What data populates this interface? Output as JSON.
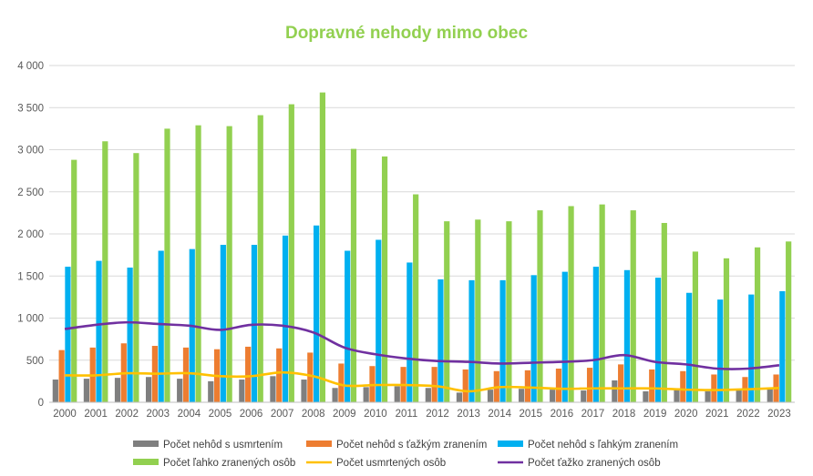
{
  "chart_data": {
    "type": "bar",
    "title": "Dopravné nehody mimo obec",
    "xlabel": "",
    "ylabel": "",
    "ylim": [
      0,
      4000
    ],
    "yticks": [
      0,
      500,
      1000,
      1500,
      2000,
      2500,
      3000,
      3500,
      4000
    ],
    "ytick_labels": [
      "0",
      "500",
      "1 000",
      "1 500",
      "2 000",
      "2 500",
      "3 000",
      "3 500",
      "4 000"
    ],
    "grid": "horizontal",
    "legend_position": "bottom",
    "categories": [
      "2000",
      "2001",
      "2002",
      "2003",
      "2004",
      "2005",
      "2006",
      "2007",
      "2008",
      "2009",
      "2010",
      "2011",
      "2012",
      "2013",
      "2014",
      "2015",
      "2016",
      "2017",
      "2018",
      "2019",
      "2020",
      "2021",
      "2022",
      "2023"
    ],
    "series": [
      {
        "name": "Počet nehôd s usmrtením",
        "kind": "bar",
        "color": "#7f7f7f",
        "values": [
          270,
          280,
          290,
          300,
          280,
          250,
          270,
          310,
          270,
          170,
          180,
          190,
          170,
          115,
          150,
          160,
          150,
          140,
          260,
          130,
          145,
          130,
          145,
          160
        ]
      },
      {
        "name": "Počet nehôd s ťažkým zranením",
        "kind": "bar",
        "color": "#ed7d31",
        "values": [
          620,
          650,
          700,
          670,
          650,
          630,
          660,
          640,
          590,
          460,
          430,
          420,
          420,
          390,
          370,
          380,
          400,
          410,
          450,
          390,
          370,
          330,
          300,
          330
        ]
      },
      {
        "name": "Počet nehôd s ľahkým zranením",
        "kind": "bar",
        "color": "#00b0f0",
        "values": [
          1610,
          1680,
          1600,
          1800,
          1820,
          1870,
          1870,
          1980,
          2100,
          1800,
          1930,
          1660,
          1460,
          1450,
          1450,
          1510,
          1550,
          1610,
          1570,
          1480,
          1300,
          1220,
          1280,
          1320
        ]
      },
      {
        "name": "Počet ľahko zranených osôb",
        "kind": "bar",
        "color": "#92d050",
        "values": [
          2880,
          3100,
          2960,
          3250,
          3290,
          3280,
          3410,
          3540,
          3680,
          3010,
          2920,
          2470,
          2150,
          2170,
          2150,
          2280,
          2330,
          2350,
          2280,
          2130,
          1790,
          1710,
          1840,
          1910
        ]
      },
      {
        "name": "Počet usmrtených osôb",
        "kind": "line",
        "color": "#ffc000",
        "values": [
          320,
          320,
          345,
          340,
          345,
          310,
          310,
          355,
          310,
          200,
          205,
          205,
          190,
          130,
          180,
          175,
          160,
          165,
          165,
          165,
          150,
          145,
          155,
          170
        ]
      },
      {
        "name": "Počet ťažko zranených osôb",
        "kind": "line",
        "color": "#7030a0",
        "values": [
          870,
          920,
          950,
          930,
          910,
          860,
          920,
          910,
          830,
          650,
          570,
          520,
          490,
          480,
          460,
          470,
          480,
          500,
          560,
          480,
          450,
          400,
          400,
          440
        ]
      }
    ],
    "colors": {
      "title": "#92d050",
      "grid": "#d9d9d9",
      "axis": "#bfbfbf"
    }
  }
}
